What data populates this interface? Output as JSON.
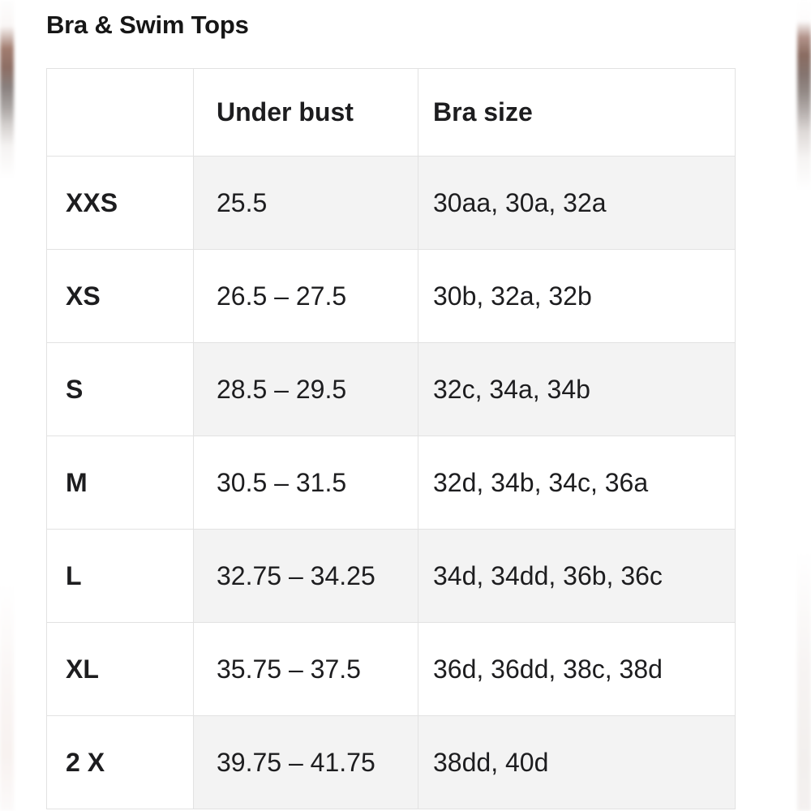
{
  "page": {
    "title": "Bra & Swim Tops"
  },
  "table": {
    "headers": [
      "",
      "Under bust",
      "Bra size"
    ],
    "rows": [
      {
        "size": "XXS",
        "under_bust": "25.5",
        "bra_size": "30aa, 30a, 32a",
        "shaded": true
      },
      {
        "size": "XS",
        "under_bust": "26.5 – 27.5",
        "bra_size": "30b, 32a, 32b",
        "shaded": false
      },
      {
        "size": "S",
        "under_bust": "28.5 – 29.5",
        "bra_size": "32c, 34a, 34b",
        "shaded": true
      },
      {
        "size": "M",
        "under_bust": "30.5 – 31.5",
        "bra_size": "32d, 34b, 34c, 36a",
        "shaded": false
      },
      {
        "size": "L",
        "under_bust": "32.75 – 34.25",
        "bra_size": "34d, 34dd, 36b, 36c",
        "shaded": true
      },
      {
        "size": "XL",
        "under_bust": "35.75 – 37.5",
        "bra_size": "36d, 36dd, 38c, 38d",
        "shaded": false
      },
      {
        "size": "2 X",
        "under_bust": "39.75 – 41.75",
        "bra_size": "38dd, 40d",
        "shaded": true
      }
    ]
  },
  "colors": {
    "text": "#1d1d1f",
    "shaded_row_bg": "#f3f3f3",
    "border": "#e2e2e2",
    "page_bg": "#ffffff",
    "edge_blur_brown": "#8d6e64",
    "edge_blur_gray": "#a9a4a2"
  }
}
